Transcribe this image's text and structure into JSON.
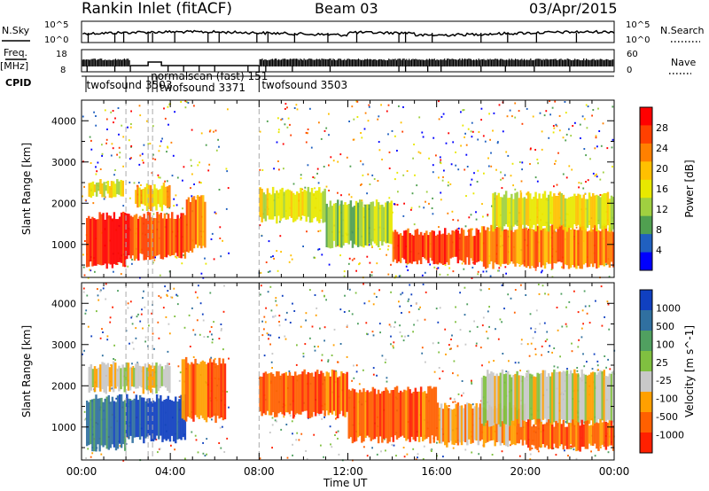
{
  "header": {
    "station": "Rankin Inlet (fitACF)",
    "beam": "Beam 03",
    "date": "03/Apr/2015"
  },
  "aux_panels": {
    "nsky_label": "N.Sky",
    "nsearch_label": "N.Search",
    "nsky_ticks": [
      "10^5",
      "10^0"
    ],
    "nsearch_ticks": [
      "10^5",
      "10^0"
    ],
    "freq_label_1": "Freq.",
    "freq_label_2": "[MHz]",
    "freq_ticks": [
      "18",
      "8"
    ],
    "nave_label": "Nave",
    "nave_ticks": [
      "60",
      "0"
    ],
    "cpid_label": "CPID",
    "cpid_names": [
      {
        "text": "twofsound 3503",
        "start_hour": 0.1
      },
      {
        "text": "normalscan (fast) 151",
        "start_hour": 3.0
      },
      {
        "text": "twofsound 3371",
        "start_hour": 3.4
      },
      {
        "text": "twofsound 3503",
        "start_hour": 8.0
      }
    ]
  },
  "chart_data": [
    {
      "type": "heatmap",
      "title": "",
      "parameter": "Power",
      "colorbar_label": "Power [dB]",
      "colorbar_ticks": [
        "28",
        "24",
        "20",
        "16",
        "12",
        "8",
        "4"
      ],
      "colorbar_colors": [
        "#ff0000",
        "#ff4000",
        "#ff8000",
        "#ffc000",
        "#e8e800",
        "#a0d040",
        "#50a050",
        "#2060c0",
        "#0000ff"
      ],
      "xlabel": "",
      "ylabel": "Slant Range [km]",
      "xlim_hours": [
        0,
        24
      ],
      "ylim_km": [
        200,
        4500
      ],
      "yticks": [
        "4000",
        "3000",
        "2000",
        "1000"
      ],
      "bands": [
        {
          "x0": 0.2,
          "x1": 2.0,
          "y0": 500,
          "y1": 1700,
          "level": 28
        },
        {
          "x0": 2.0,
          "x1": 3.2,
          "y0": 700,
          "y1": 1700,
          "level": 24
        },
        {
          "x0": 3.2,
          "x1": 4.7,
          "y0": 700,
          "y1": 1700,
          "level": 26
        },
        {
          "x0": 4.7,
          "x1": 5.6,
          "y0": 900,
          "y1": 2100,
          "level": 20
        },
        {
          "x0": 0.3,
          "x1": 1.9,
          "y0": 2200,
          "y1": 2500,
          "level": 14
        },
        {
          "x0": 2.4,
          "x1": 4.0,
          "y0": 1900,
          "y1": 2400,
          "level": 16
        },
        {
          "x0": 8.0,
          "x1": 11.0,
          "y0": 1600,
          "y1": 2300,
          "level": 12
        },
        {
          "x0": 11.0,
          "x1": 14.0,
          "y0": 1000,
          "y1": 2000,
          "level": 8
        },
        {
          "x0": 14.0,
          "x1": 18.0,
          "y0": 600,
          "y1": 1300,
          "level": 24
        },
        {
          "x0": 18.0,
          "x1": 24.0,
          "y0": 500,
          "y1": 1400,
          "level": 20
        },
        {
          "x0": 18.5,
          "x1": 24.0,
          "y0": 1400,
          "y1": 2200,
          "level": 12
        }
      ]
    },
    {
      "type": "heatmap",
      "title": "",
      "parameter": "Velocity",
      "colorbar_label": "Velocity [m s^-1]",
      "colorbar_ticks": [
        "1000",
        "500",
        "100",
        "25",
        "-25",
        "-100",
        "-500",
        "-1000"
      ],
      "colorbar_colors": [
        "#1040c0",
        "#3070a0",
        "#50a060",
        "#80c040",
        "#c8c8c8",
        "#ffa000",
        "#ff6000",
        "#ff2000"
      ],
      "xlabel": "Time UT",
      "ylabel": "Slant Range [km]",
      "xlim_hours": [
        0,
        24
      ],
      "ylim_km": [
        200,
        4500
      ],
      "xticks": [
        "00:00",
        "04:00",
        "08:00",
        "12:00",
        "16:00",
        "20:00",
        "00:00"
      ],
      "yticks": [
        "4000",
        "3000",
        "2000",
        "1000"
      ],
      "bands": [
        {
          "x0": 0.2,
          "x1": 2.0,
          "y0": 500,
          "y1": 1700,
          "level": 500
        },
        {
          "x0": 2.0,
          "x1": 4.7,
          "y0": 700,
          "y1": 1700,
          "level": 1000
        },
        {
          "x0": 4.5,
          "x1": 6.5,
          "y0": 1200,
          "y1": 2600,
          "level": -500
        },
        {
          "x0": 0.3,
          "x1": 4.0,
          "y0": 1900,
          "y1": 2500,
          "level": 0
        },
        {
          "x0": 8.0,
          "x1": 12.0,
          "y0": 1300,
          "y1": 2300,
          "level": -500
        },
        {
          "x0": 12.0,
          "x1": 16.0,
          "y0": 700,
          "y1": 1900,
          "level": -500
        },
        {
          "x0": 16.0,
          "x1": 20.0,
          "y0": 600,
          "y1": 1500,
          "level": -100
        },
        {
          "x0": 18.0,
          "x1": 24.0,
          "y0": 1100,
          "y1": 2300,
          "level": 0
        },
        {
          "x0": 20.0,
          "x1": 24.0,
          "y0": 500,
          "y1": 1100,
          "level": -500
        }
      ]
    }
  ]
}
